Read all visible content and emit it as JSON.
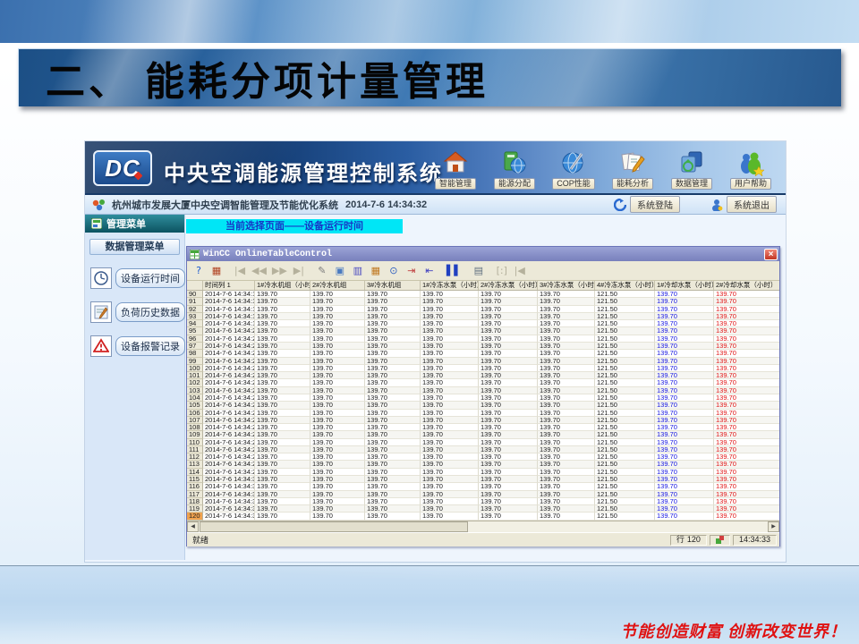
{
  "slide": {
    "title": "二、 能耗分项计量管理",
    "footer": "节能创造财富 创新改变世界！"
  },
  "app": {
    "logo": "DC",
    "title": "中央空调能源管理控制系统",
    "nav": [
      {
        "label": "智能管理",
        "icon": "home-icon"
      },
      {
        "label": "能源分配",
        "icon": "energy-allocation-icon"
      },
      {
        "label": "COP性能",
        "icon": "cop-performance-icon"
      },
      {
        "label": "能耗分析",
        "icon": "energy-analysis-icon"
      },
      {
        "label": "数据管理",
        "icon": "data-management-icon"
      },
      {
        "label": "用户帮助",
        "icon": "user-help-icon"
      }
    ],
    "statusbar": {
      "system_name": "杭州城市发展大厦中央空调智能管理及节能优化系统",
      "datetime": "2014-7-6 14:34:32",
      "login_label": "系统登陆",
      "logout_label": "系统退出"
    },
    "sidebar": {
      "header": "管理菜单",
      "submenu_header": "数据管理菜单",
      "items": [
        {
          "label": "设备运行时间",
          "icon": "clock-icon"
        },
        {
          "label": "负荷历史数据",
          "icon": "history-data-icon"
        },
        {
          "label": "设备报警记录",
          "icon": "alarm-icon"
        }
      ]
    },
    "main": {
      "banner": "当前选择页面——设备运行时间"
    },
    "wincc": {
      "title": "WinCC OnlineTableControl",
      "toolbar": [
        {
          "name": "help-icon",
          "glyph": "?",
          "color": "#1a5ad0",
          "enabled": true,
          "gap": false
        },
        {
          "name": "config-icon",
          "glyph": "▦",
          "color": "#b04020",
          "enabled": true,
          "gap": false
        },
        {
          "name": "first-record-icon",
          "glyph": "|◀",
          "color": "#888",
          "enabled": false,
          "gap": true
        },
        {
          "name": "rewind-icon",
          "glyph": "◀◀",
          "color": "#888",
          "enabled": false,
          "gap": false
        },
        {
          "name": "forward-icon",
          "glyph": "▶▶",
          "color": "#888",
          "enabled": false,
          "gap": false
        },
        {
          "name": "last-record-icon",
          "glyph": "▶|",
          "color": "#888",
          "enabled": false,
          "gap": false
        },
        {
          "name": "edit-icon",
          "glyph": "✎",
          "color": "#7c7c7c",
          "enabled": true,
          "gap": true
        },
        {
          "name": "copy-icon",
          "glyph": "▣",
          "color": "#4a7ac0",
          "enabled": true,
          "gap": false
        },
        {
          "name": "select-columns-icon",
          "glyph": "▥",
          "color": "#4a4ac0",
          "enabled": true,
          "gap": false
        },
        {
          "name": "time-range-icon",
          "glyph": "▦",
          "color": "#c07820",
          "enabled": true,
          "gap": false
        },
        {
          "name": "time-base-icon",
          "glyph": "⊙",
          "color": "#3060c0",
          "enabled": true,
          "gap": false
        },
        {
          "name": "export-icon",
          "glyph": "⇥",
          "color": "#c04040",
          "enabled": true,
          "gap": false
        },
        {
          "name": "import-icon",
          "glyph": "⇤",
          "color": "#4040c0",
          "enabled": true,
          "gap": false
        },
        {
          "name": "pause-icon",
          "glyph": "▌▌",
          "color": "#2040c0",
          "enabled": true,
          "gap": true
        },
        {
          "name": "print-icon",
          "glyph": "▤",
          "color": "#607080",
          "enabled": true,
          "gap": true
        },
        {
          "name": "expand-icon",
          "glyph": "[:]",
          "color": "#888",
          "enabled": false,
          "gap": true
        },
        {
          "name": "collapse-icon",
          "glyph": "|◀",
          "color": "#888",
          "enabled": false,
          "gap": false
        }
      ],
      "table": {
        "columns": [
          "",
          "时间列 1",
          "1#冷水机组（小时）",
          "2#冷水机组",
          "3#冷水机组",
          "1#冷冻水泵（小时）",
          "2#冷冻水泵（小时）",
          "3#冷冻水泵（小时）",
          "4#冷冻水泵（小时）",
          "1#冷却水泵（小时）",
          "2#冷却水泵（小时）"
        ],
        "row_values": [
          "139.70",
          "139.70",
          "139.70",
          "139.70",
          "139.70",
          "139.70",
          "121.50",
          "139.70",
          "139.70"
        ],
        "value_colors": [
          "#1c1c1c",
          "#1c1c1c",
          "#1c1c1c",
          "#1c1c1c",
          "#1c1c1c",
          "#1c1c1c",
          "#1c1c1c",
          "#1414e0",
          "#e01414"
        ],
        "selected_row": 120,
        "rows": [
          {
            "n": 90,
            "t": "2014-7-6 14:34:17"
          },
          {
            "n": 91,
            "t": "2014-7-6 14:34:18"
          },
          {
            "n": 92,
            "t": "2014-7-6 14:34:18"
          },
          {
            "n": 93,
            "t": "2014-7-6 14:34:19"
          },
          {
            "n": 94,
            "t": "2014-7-6 14:34:19"
          },
          {
            "n": 95,
            "t": "2014-7-6 14:34:20"
          },
          {
            "n": 96,
            "t": "2014-7-6 14:34:20"
          },
          {
            "n": 97,
            "t": "2014-7-6 14:34:21"
          },
          {
            "n": 98,
            "t": "2014-7-6 14:34:21"
          },
          {
            "n": 99,
            "t": "2014-7-6 14:34:22"
          },
          {
            "n": 100,
            "t": "2014-7-6 14:34:22"
          },
          {
            "n": 101,
            "t": "2014-7-6 14:34:23"
          },
          {
            "n": 102,
            "t": "2014-7-6 14:34:23"
          },
          {
            "n": 103,
            "t": "2014-7-6 14:34:24"
          },
          {
            "n": 104,
            "t": "2014-7-6 14:34:24"
          },
          {
            "n": 105,
            "t": "2014-7-6 14:34:25"
          },
          {
            "n": 106,
            "t": "2014-7-6 14:34:25"
          },
          {
            "n": 107,
            "t": "2014-7-6 14:34:26"
          },
          {
            "n": 108,
            "t": "2014-7-6 14:34:26"
          },
          {
            "n": 109,
            "t": "2014-7-6 14:34:27"
          },
          {
            "n": 110,
            "t": "2014-7-6 14:34:27"
          },
          {
            "n": 111,
            "t": "2014-7-6 14:34:28"
          },
          {
            "n": 112,
            "t": "2014-7-6 14:34:28"
          },
          {
            "n": 113,
            "t": "2014-7-6 14:34:29"
          },
          {
            "n": 114,
            "t": "2014-7-6 14:34:29"
          },
          {
            "n": 115,
            "t": "2014-7-6 14:34:30"
          },
          {
            "n": 116,
            "t": "2014-7-6 14:34:30"
          },
          {
            "n": 117,
            "t": "2014-7-6 14:34:31"
          },
          {
            "n": 118,
            "t": "2014-7-6 14:34:31"
          },
          {
            "n": 119,
            "t": "2014-7-6 14:34:32"
          },
          {
            "n": 120,
            "t": "2014-7-6 14:34:32"
          }
        ]
      },
      "status": {
        "ready": "就绪",
        "row_label": "行",
        "row_value": "120",
        "time": "14:34:33"
      }
    }
  }
}
